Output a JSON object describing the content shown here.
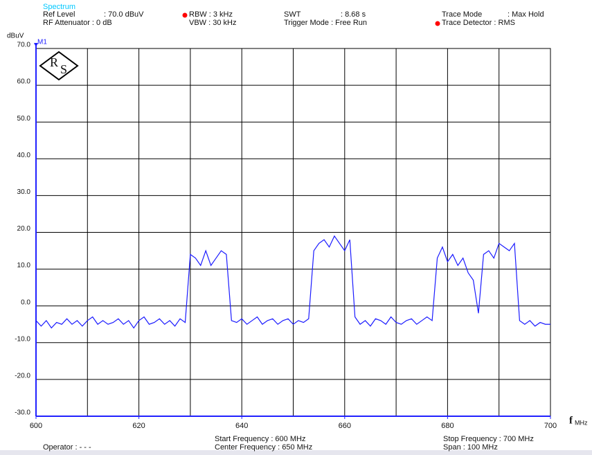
{
  "chart_data": {
    "type": "line",
    "title": "Spectrum",
    "header": {
      "ref_level_label": "Ref Level",
      "ref_level_value": ": 70.0 dBuV",
      "rf_attenuator": "RF Attenuator :  0  dB",
      "rbw": "RBW :  3 kHz",
      "vbw": "VBW : 30 kHz",
      "swt_label": "SWT",
      "swt_value": ": 8.68 s",
      "trigger_mode": "Trigger Mode : Free Run",
      "trace_mode_label": "Trace Mode",
      "trace_mode_value": ": Max Hold",
      "trace_detector": "Trace Detector : RMS"
    },
    "footer": {
      "operator": "Operator : - - -",
      "start_frequency": "Start Frequency  : 600 MHz",
      "center_frequency": "Center Frequency : 650 MHz",
      "stop_frequency": "Stop Frequency : 700 MHz",
      "span": "Span              : 100 MHz"
    },
    "y_label": "dBuV",
    "x_label": {
      "symbol": "f",
      "unit": "MHz"
    },
    "marker": "M1",
    "logo": {
      "letters": [
        "R",
        "S"
      ]
    },
    "xlim": [
      600,
      700
    ],
    "xticks": [
      600,
      620,
      640,
      660,
      680,
      700
    ],
    "xgrid": [
      610,
      620,
      630,
      640,
      650,
      660,
      670,
      680,
      690
    ],
    "ylim": [
      -30,
      70
    ],
    "yticks": [
      {
        "value": 70,
        "label": "70.0"
      },
      {
        "value": 60,
        "label": "60.0"
      },
      {
        "value": 50,
        "label": "50.0"
      },
      {
        "value": 40,
        "label": "40.0"
      },
      {
        "value": 30,
        "label": "30.0"
      },
      {
        "value": 20,
        "label": "20.0"
      },
      {
        "value": 10,
        "label": "10.0"
      },
      {
        "value": 0,
        "label": "0.0"
      },
      {
        "value": -10,
        "label": "-10.0"
      },
      {
        "value": -20,
        "label": "-20.0"
      },
      {
        "value": -30,
        "label": "-30.0"
      }
    ],
    "grid": true,
    "axis_color": "#2020ff",
    "grid_color": "#000000",
    "header_dot_color": "#ff0000",
    "title_color": "#00c8ff",
    "x": [
      600,
      601,
      602,
      603,
      604,
      605,
      606,
      607,
      608,
      609,
      610,
      611,
      612,
      613,
      614,
      615,
      616,
      617,
      618,
      619,
      620,
      621,
      622,
      623,
      624,
      625,
      626,
      627,
      628,
      629,
      630,
      631,
      632,
      633,
      634,
      635,
      636,
      637,
      638,
      639,
      640,
      641,
      642,
      643,
      644,
      645,
      646,
      647,
      648,
      649,
      650,
      651,
      652,
      653,
      654,
      655,
      656,
      657,
      658,
      659,
      660,
      661,
      662,
      663,
      664,
      665,
      666,
      667,
      668,
      669,
      670,
      671,
      672,
      673,
      674,
      675,
      676,
      677,
      678,
      679,
      680,
      681,
      682,
      683,
      684,
      685,
      686,
      687,
      688,
      689,
      690,
      691,
      692,
      693,
      694,
      695,
      696,
      697,
      698,
      699,
      700
    ],
    "series": [
      {
        "color": "#1a1aff",
        "values": [
          -4,
          -5.5,
          -4,
          -6,
          -4.5,
          -5,
          -3.5,
          -5,
          -4,
          -5.5,
          -4,
          -3,
          -5,
          -4,
          -5,
          -4.5,
          -3.5,
          -5,
          -4,
          -6,
          -4,
          -3,
          -5,
          -4.5,
          -3.5,
          -5,
          -4,
          -5.5,
          -3.5,
          -4.5,
          14,
          13,
          11,
          15,
          11,
          13,
          15,
          14,
          -4,
          -4.5,
          -3.5,
          -5,
          -4,
          -3,
          -5,
          -4,
          -3.5,
          -5,
          -4,
          -3.5,
          -5,
          -4,
          -4.5,
          -3.5,
          15,
          17,
          18,
          16,
          19,
          17,
          15,
          18,
          -3,
          -5,
          -4,
          -5.5,
          -3.5,
          -4,
          -5,
          -3,
          -4.5,
          -5,
          -4,
          -3.5,
          -5,
          -4,
          -3,
          -4,
          13,
          16,
          12,
          14,
          11,
          13,
          9,
          7,
          -2,
          14,
          15,
          13,
          17,
          16,
          15,
          17,
          -4,
          -5,
          -4,
          -5.5,
          -4.5,
          -5,
          -5
        ]
      }
    ]
  }
}
